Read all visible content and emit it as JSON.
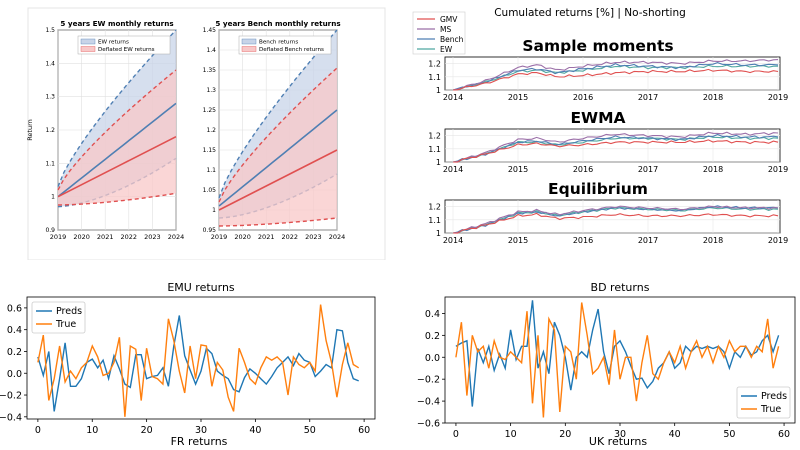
{
  "chart_data": [
    {
      "id": "ew_fan",
      "type": "line",
      "title": "5 years EW monthly returns",
      "ylabel": "Return",
      "xlim": [
        2019,
        2024
      ],
      "ylim": [
        0.9,
        1.5
      ],
      "xticks": [
        2019,
        2020,
        2021,
        2022,
        2023,
        2024
      ],
      "yticks": [
        0.9,
        1,
        1.1,
        1.2,
        1.3,
        1.4,
        1.5
      ],
      "ytick_labels": [
        "0.9",
        "1",
        "1.1",
        "1.2",
        "1.3",
        "1.4",
        "1.5"
      ],
      "legend": [
        "EW returns",
        "Deflated EW returns"
      ],
      "colors": {
        "blue": "#4f7fb3",
        "red": "#e05050",
        "blue_fill": "#c8d4e8",
        "red_fill": "#f8c8c8"
      },
      "series": [
        {
          "name": "EW returns",
          "x": [
            2019,
            2024
          ],
          "mean": [
            1.0,
            1.28
          ],
          "lower": [
            0.97,
            1.115
          ],
          "upper": [
            1.03,
            1.5
          ]
        },
        {
          "name": "Deflated EW returns",
          "x": [
            2019,
            2024
          ],
          "mean": [
            1.0,
            1.18
          ],
          "lower": [
            0.975,
            1.01
          ],
          "upper": [
            1.02,
            1.38
          ]
        }
      ]
    },
    {
      "id": "bench_fan",
      "type": "line",
      "title": "5 years Bench monthly returns",
      "ylabel": "",
      "xlim": [
        2019,
        2024
      ],
      "ylim": [
        0.95,
        1.45
      ],
      "xticks": [
        2019,
        2020,
        2021,
        2022,
        2023,
        2024
      ],
      "yticks": [
        0.95,
        1,
        1.05,
        1.1,
        1.15,
        1.2,
        1.25,
        1.3,
        1.35,
        1.4,
        1.45
      ],
      "ytick_labels": [
        "0.95",
        "1",
        "1.05",
        "1.1",
        "1.15",
        "1.2",
        "1.25",
        "1.3",
        "1.35",
        "1.4",
        "1.45"
      ],
      "legend": [
        "Bench returns",
        "Deflated Bench returns"
      ],
      "colors": {
        "blue": "#4f7fb3",
        "red": "#e05050",
        "blue_fill": "#c8d4e8",
        "red_fill": "#f8c8c8"
      },
      "series": [
        {
          "name": "Bench returns",
          "x": [
            2019,
            2024
          ],
          "mean": [
            1.01,
            1.25
          ],
          "lower": [
            0.98,
            1.09
          ],
          "upper": [
            1.03,
            1.45
          ]
        },
        {
          "name": "Deflated Bench returns",
          "x": [
            2019,
            2024
          ],
          "mean": [
            1.0,
            1.15
          ],
          "lower": [
            0.96,
            0.98
          ],
          "upper": [
            1.02,
            1.355
          ]
        }
      ]
    },
    {
      "id": "cumulated",
      "type": "line",
      "title": "Cumulated returns [%] | No-shorting",
      "legend": [
        "GMV",
        "MS",
        "Bench",
        "EW"
      ],
      "colors": {
        "GMV": "#e05050",
        "MS": "#9b6fa8",
        "Bench": "#4f7fb3",
        "EW": "#4fa8a0"
      },
      "x": [
        2014,
        2014.5,
        2015,
        2015.3,
        2015.6,
        2016,
        2016.5,
        2017,
        2017.5,
        2018,
        2018.5,
        2019
      ],
      "xticks": [
        2014,
        2015,
        2016,
        2017,
        2018,
        2019
      ],
      "yticks": [
        1,
        1.1,
        1.2
      ],
      "ylim": [
        1,
        1.25
      ],
      "panels": [
        {
          "title": "Sample moments",
          "series": {
            "GMV": [
              1.0,
              1.05,
              1.12,
              1.13,
              1.1,
              1.11,
              1.13,
              1.14,
              1.14,
              1.15,
              1.14,
              1.14
            ],
            "MS": [
              1.0,
              1.07,
              1.17,
              1.19,
              1.15,
              1.18,
              1.21,
              1.21,
              1.2,
              1.22,
              1.22,
              1.23
            ],
            "Bench": [
              1.0,
              1.06,
              1.15,
              1.16,
              1.13,
              1.16,
              1.19,
              1.18,
              1.17,
              1.2,
              1.19,
              1.19
            ],
            "EW": [
              1.0,
              1.06,
              1.14,
              1.15,
              1.13,
              1.15,
              1.18,
              1.17,
              1.17,
              1.18,
              1.18,
              1.18
            ]
          }
        },
        {
          "title": "EWMA",
          "series": {
            "GMV": [
              1.0,
              1.06,
              1.13,
              1.14,
              1.12,
              1.13,
              1.15,
              1.15,
              1.15,
              1.16,
              1.15,
              1.15
            ],
            "MS": [
              1.0,
              1.07,
              1.17,
              1.18,
              1.15,
              1.18,
              1.21,
              1.2,
              1.19,
              1.22,
              1.21,
              1.22
            ],
            "Bench": [
              1.0,
              1.06,
              1.15,
              1.16,
              1.13,
              1.16,
              1.19,
              1.18,
              1.17,
              1.2,
              1.19,
              1.19
            ],
            "EW": [
              1.0,
              1.06,
              1.15,
              1.15,
              1.13,
              1.15,
              1.18,
              1.18,
              1.17,
              1.19,
              1.18,
              1.18
            ]
          }
        },
        {
          "title": "Equilibrium",
          "series": {
            "GMV": [
              1.0,
              1.06,
              1.13,
              1.14,
              1.11,
              1.12,
              1.14,
              1.13,
              1.13,
              1.14,
              1.13,
              1.13
            ],
            "MS": [
              1.0,
              1.07,
              1.16,
              1.17,
              1.14,
              1.17,
              1.2,
              1.19,
              1.18,
              1.2,
              1.19,
              1.19
            ],
            "Bench": [
              1.0,
              1.06,
              1.15,
              1.16,
              1.13,
              1.16,
              1.19,
              1.18,
              1.17,
              1.2,
              1.19,
              1.19
            ],
            "EW": [
              1.0,
              1.06,
              1.15,
              1.16,
              1.13,
              1.16,
              1.19,
              1.18,
              1.17,
              1.19,
              1.18,
              1.18
            ]
          }
        }
      ]
    },
    {
      "id": "emu",
      "type": "line",
      "title": "EMU returns",
      "xlim": [
        -2,
        62
      ],
      "ylim": [
        -0.42,
        0.7
      ],
      "xticks": [
        0,
        10,
        20,
        30,
        40,
        50,
        60
      ],
      "yticks": [
        -0.4,
        -0.2,
        0.0,
        0.2,
        0.4,
        0.6
      ],
      "ytick_labels": [
        "−0.4",
        "−0.2",
        "0.0",
        "0.2",
        "0.4",
        "0.6"
      ],
      "legend_position": "top-left",
      "colors": {
        "Preds": "#1f77b4",
        "True": "#ff7f0e"
      },
      "series": [
        {
          "name": "Preds",
          "values": [
            0.15,
            -0.02,
            0.2,
            -0.35,
            -0.05,
            0.28,
            -0.12,
            -0.12,
            -0.05,
            0.1,
            0.13,
            0.05,
            0.12,
            -0.05,
            0.16,
            0.04,
            -0.1,
            -0.13,
            0.17,
            0.17,
            -0.05,
            -0.03,
            -0.02,
            0.05,
            -0.12,
            0.25,
            0.53,
            0.16,
            0.03,
            -0.1,
            0.02,
            0.23,
            0.18,
            0.02,
            -0.02,
            -0.05,
            -0.15,
            -0.17,
            -0.04,
            0.04,
            0.0,
            -0.05,
            -0.1,
            -0.03,
            0.05,
            0.1,
            0.15,
            0.07,
            0.18,
            0.12,
            0.1,
            -0.03,
            0.02,
            0.08,
            0.05,
            0.4,
            0.39,
            0.1,
            -0.05,
            -0.07
          ]
        },
        {
          "name": "True",
          "values": [
            0.1,
            0.35,
            -0.25,
            -0.05,
            0.25,
            -0.08,
            0.02,
            -0.05,
            0.05,
            0.1,
            0.25,
            0.15,
            -0.02,
            0.0,
            0.1,
            0.33,
            -0.4,
            0.25,
            0.22,
            -0.25,
            0.23,
            -0.03,
            -0.05,
            -0.1,
            0.5,
            0.3,
            0.02,
            -0.18,
            0.25,
            -0.05,
            0.26,
            0.25,
            -0.12,
            0.1,
            0.03,
            -0.22,
            -0.35,
            0.23,
            0.1,
            -0.05,
            -0.1,
            0.05,
            0.15,
            0.12,
            0.15,
            0.1,
            -0.2,
            0.15,
            0.08,
            0.05,
            0.1,
            0.02,
            0.63,
            0.3,
            0.1,
            -0.22,
            0.08,
            0.28,
            0.08,
            0.05
          ]
        }
      ]
    },
    {
      "id": "bd",
      "type": "line",
      "title": "BD returns",
      "xlim": [
        -2,
        62
      ],
      "ylim": [
        -0.6,
        0.55
      ],
      "xticks": [
        0,
        10,
        20,
        30,
        40,
        50,
        60
      ],
      "yticks": [
        -0.6,
        -0.4,
        -0.2,
        0.0,
        0.2,
        0.4
      ],
      "ytick_labels": [
        "−0.6",
        "−0.4",
        "−0.2",
        "0.0",
        "0.2",
        "0.4"
      ],
      "legend_position": "bottom-right",
      "colors": {
        "Preds": "#1f77b4",
        "True": "#ff7f0e"
      },
      "series": [
        {
          "name": "Preds",
          "values": [
            0.1,
            0.13,
            0.15,
            -0.45,
            0.08,
            -0.05,
            0.1,
            -0.12,
            0.03,
            -0.1,
            0.25,
            -0.02,
            0.1,
            0.1,
            0.52,
            -0.1,
            0.05,
            -0.15,
            0.32,
            0.2,
            0.0,
            -0.3,
            0.0,
            0.05,
            0.0,
            0.25,
            0.44,
            0.05,
            -0.15,
            0.1,
            0.15,
            0.05,
            -0.08,
            -0.2,
            -0.19,
            -0.28,
            -0.22,
            -0.1,
            -0.05,
            0.05,
            -0.1,
            -0.05,
            0.1,
            0.05,
            0.1,
            0.08,
            0.1,
            0.08,
            0.1,
            0.05,
            -0.1,
            0.05,
            0.0,
            0.1,
            0.02,
            0.05,
            0.15,
            0.2,
            0.05,
            0.2
          ]
        },
        {
          "name": "True",
          "values": [
            0.0,
            0.32,
            -0.35,
            0.2,
            0.05,
            0.1,
            -0.1,
            0.15,
            0.0,
            -0.02,
            0.05,
            0.0,
            -0.05,
            0.42,
            -0.42,
            0.2,
            -0.55,
            0.35,
            0.25,
            -0.5,
            0.1,
            0.05,
            -0.2,
            0.5,
            0.2,
            -0.15,
            -0.1,
            0.0,
            -0.25,
            0.25,
            -0.2,
            0.0,
            0.0,
            -0.4,
            -0.05,
            0.2,
            -0.15,
            -0.2,
            -0.05,
            0.05,
            -0.05,
            0.1,
            -0.1,
            0.05,
            0.15,
            0.0,
            0.1,
            -0.05,
            0.1,
            0.0,
            0.15,
            0.05,
            0.1,
            0.1,
            0.0,
            0.1,
            0.05,
            0.35,
            -0.1,
            0.1
          ]
        }
      ]
    }
  ],
  "cut_off_labels": {
    "left": "FR returns",
    "right": "UK returns"
  }
}
